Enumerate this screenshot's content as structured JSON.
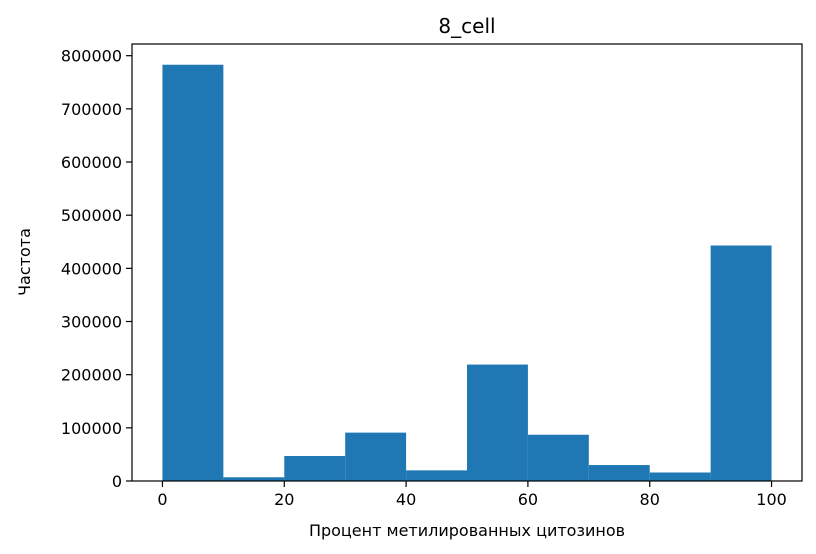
{
  "chart_data": {
    "type": "bar",
    "title": "8_cell",
    "xlabel": "Процент метилированных цитозинов",
    "ylabel": "Частота",
    "bins": [
      {
        "x0": 0,
        "x1": 10,
        "value": 783000
      },
      {
        "x0": 10,
        "x1": 20,
        "value": 7000
      },
      {
        "x0": 20,
        "x1": 30,
        "value": 47000
      },
      {
        "x0": 30,
        "x1": 40,
        "value": 91000
      },
      {
        "x0": 40,
        "x1": 50,
        "value": 20000
      },
      {
        "x0": 50,
        "x1": 60,
        "value": 219000
      },
      {
        "x0": 60,
        "x1": 70,
        "value": 87000
      },
      {
        "x0": 70,
        "x1": 80,
        "value": 30000
      },
      {
        "x0": 80,
        "x1": 90,
        "value": 16000
      },
      {
        "x0": 90,
        "x1": 100,
        "value": 443000
      }
    ],
    "xlim": [
      -5,
      105
    ],
    "ylim": [
      0,
      822000
    ],
    "xticks": [
      0,
      20,
      40,
      60,
      80,
      100
    ],
    "yticks": [
      0,
      100000,
      200000,
      300000,
      400000,
      500000,
      600000,
      700000,
      800000
    ],
    "grid": false,
    "bar_color": "#1f77b4"
  }
}
